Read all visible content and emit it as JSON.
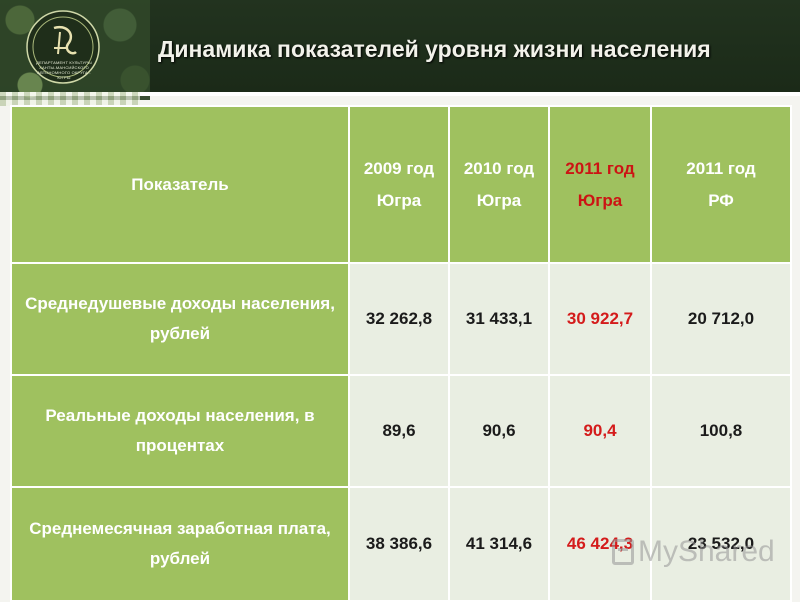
{
  "header": {
    "title": "Динамика показателей уровня жизни населения",
    "logo_caption": "ДЕПАРТАМЕНТ КУЛЬТУРЫ ХАНТЫ-МАНСИЙСКОГО АВТОНОМНОГО ОКРУГА - ЮГРЫ",
    "logo_icon": "emblem-icon"
  },
  "table": {
    "columns": [
      {
        "line1": "Показатель",
        "line2": ""
      },
      {
        "line1": "2009 год",
        "line2": "Югра"
      },
      {
        "line1": "2010 год",
        "line2": "Югра"
      },
      {
        "line1": "2011 год",
        "line2": "Югра"
      },
      {
        "line1": "2011 год",
        "line2": "РФ"
      }
    ],
    "rows": [
      {
        "label": "Среднедушевые доходы населения, рублей",
        "values": [
          "32 262,8",
          "31 433,1",
          "30 922,7",
          "20 712,0"
        ]
      },
      {
        "label": "Реальные доходы населения, в процентах",
        "values": [
          "89,6",
          "90,6",
          "90,4",
          "100,8"
        ]
      },
      {
        "label": "Среднемесячная заработная плата, рублей",
        "values": [
          "38 386,6",
          "41 314,6",
          "46 424,3",
          "23 532,0"
        ]
      }
    ],
    "highlight_color": "#d41b1b",
    "header_color": "#9fc15f",
    "cell_color": "#e9eee2"
  },
  "watermark": {
    "text": "MyShared"
  }
}
